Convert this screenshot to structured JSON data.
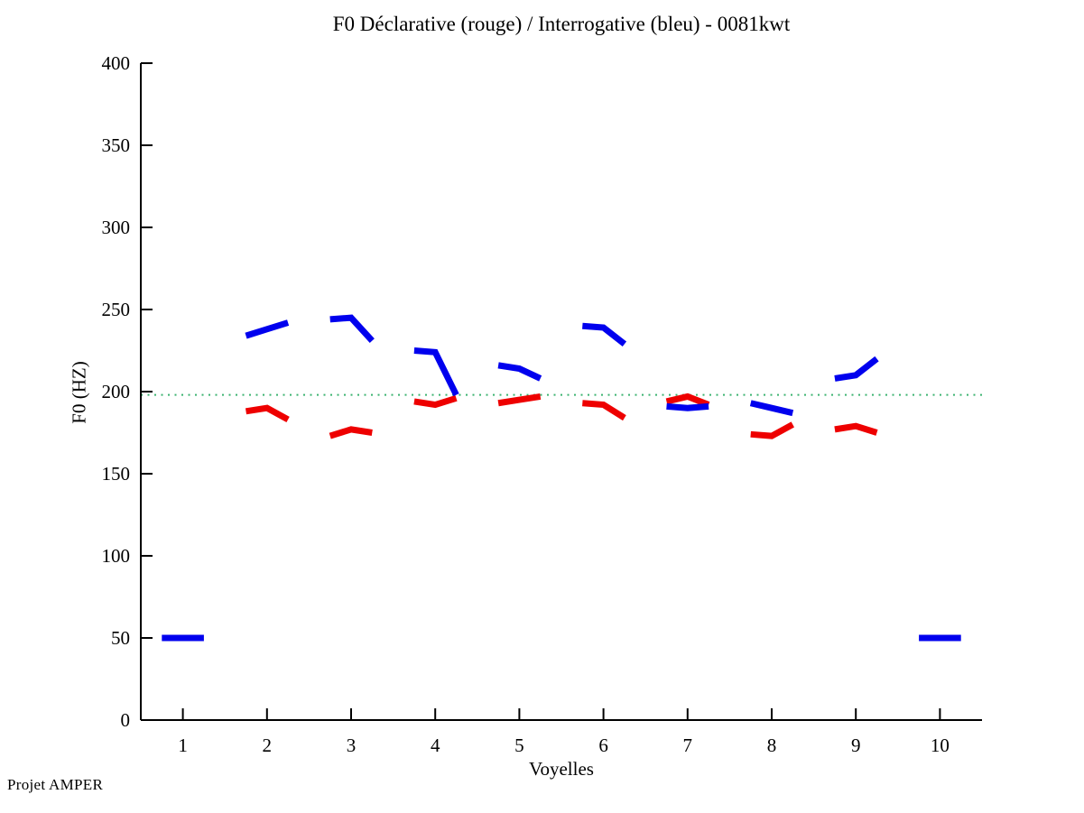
{
  "chart_data": {
    "type": "line",
    "title": "F0 Déclarative (rouge) / Interrogative (bleu) - 0081kwt",
    "xlabel": "Voyelles",
    "ylabel": "F0 (HZ)",
    "footer": "Projet AMPER",
    "xlim": [
      0.5,
      10.5
    ],
    "ylim": [
      0,
      400
    ],
    "x_ticks": [
      1,
      2,
      3,
      4,
      5,
      6,
      7,
      8,
      9,
      10
    ],
    "y_ticks": [
      0,
      50,
      100,
      150,
      200,
      250,
      300,
      350,
      400
    ],
    "grid": false,
    "legend_position": "none",
    "axis_color": "#000000",
    "reference_line": {
      "y": 198,
      "color": "#3cb371",
      "style": "dotted"
    },
    "point_offsets": [
      -0.25,
      0,
      0.25
    ],
    "series": [
      {
        "name": "Déclarative (rouge)",
        "color": "#ee0000",
        "segments": [
          {
            "vowel": 2,
            "f0": [
              188,
              190,
              183
            ]
          },
          {
            "vowel": 3,
            "f0": [
              173,
              177,
              175
            ]
          },
          {
            "vowel": 4,
            "f0": [
              194,
              192,
              196
            ]
          },
          {
            "vowel": 5,
            "f0": [
              193,
              195,
              197
            ]
          },
          {
            "vowel": 6,
            "f0": [
              193,
              192,
              184
            ]
          },
          {
            "vowel": 7,
            "f0": [
              194,
              197,
              192
            ]
          },
          {
            "vowel": 8,
            "f0": [
              174,
              173,
              180
            ]
          },
          {
            "vowel": 9,
            "f0": [
              177,
              179,
              175
            ]
          }
        ]
      },
      {
        "name": "Interrogative (bleu)",
        "color": "#0000ee",
        "segments": [
          {
            "vowel": 1,
            "f0": [
              50,
              50,
              50
            ]
          },
          {
            "vowel": 2,
            "f0": [
              234,
              238,
              242
            ]
          },
          {
            "vowel": 3,
            "f0": [
              244,
              245,
              231
            ]
          },
          {
            "vowel": 4,
            "f0": [
              225,
              224,
              198
            ]
          },
          {
            "vowel": 5,
            "f0": [
              216,
              214,
              208
            ]
          },
          {
            "vowel": 6,
            "f0": [
              240,
              239,
              229
            ]
          },
          {
            "vowel": 7,
            "f0": [
              191,
              190,
              191
            ]
          },
          {
            "vowel": 8,
            "f0": [
              193,
              190,
              187
            ]
          },
          {
            "vowel": 9,
            "f0": [
              208,
              210,
              220
            ]
          },
          {
            "vowel": 10,
            "f0": [
              50,
              50,
              50
            ]
          }
        ]
      }
    ]
  }
}
